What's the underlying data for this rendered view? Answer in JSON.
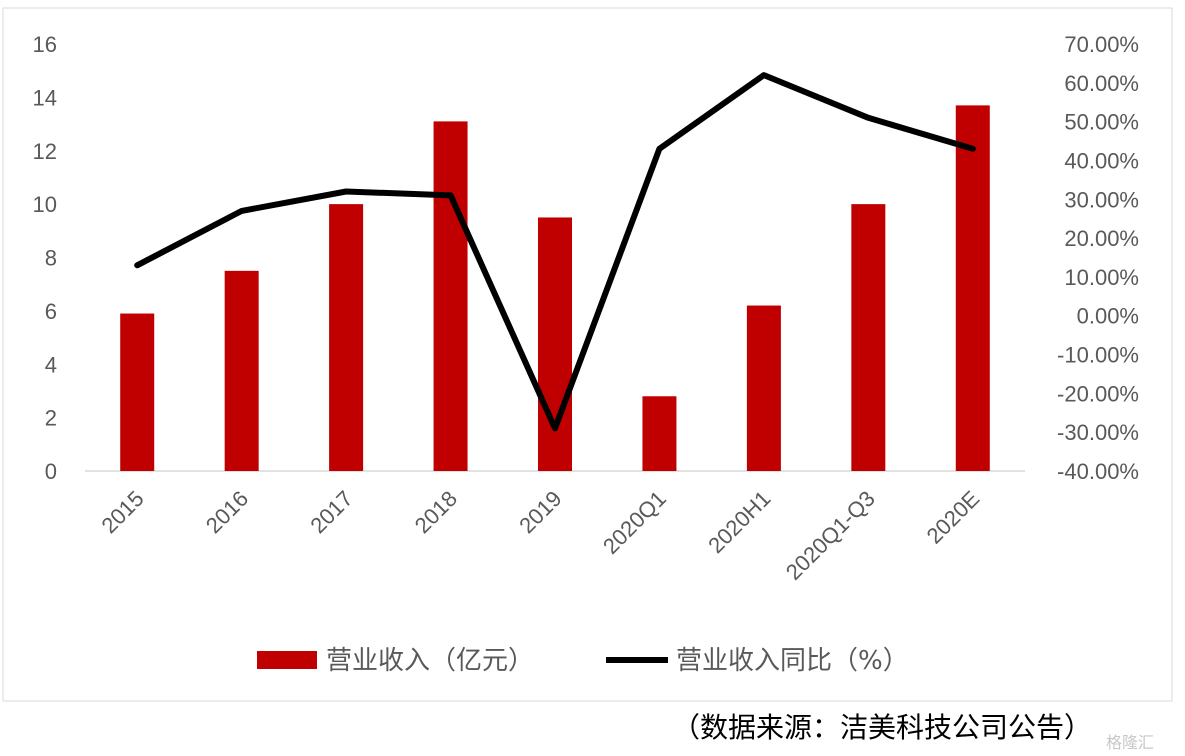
{
  "chart_data": {
    "type": "bar",
    "categories": [
      "2015",
      "2016",
      "2017",
      "2018",
      "2019",
      "2020Q1",
      "2020H1",
      "2020Q1-Q3",
      "2020E"
    ],
    "series": [
      {
        "name": "营业收入（亿元）",
        "type": "bar",
        "axis": "left",
        "color": "#c00000",
        "values": [
          5.9,
          7.5,
          10.0,
          13.1,
          9.5,
          2.8,
          6.2,
          10.0,
          13.7
        ]
      },
      {
        "name": "营业收入同比（%）",
        "type": "line",
        "axis": "right",
        "color": "#000000",
        "values": [
          13.0,
          27.0,
          32.0,
          31.0,
          -29.0,
          43.0,
          62.0,
          51.0,
          43.0
        ]
      }
    ],
    "left_axis": {
      "ylim": [
        0,
        16
      ],
      "ticks": [
        "0",
        "2",
        "4",
        "6",
        "8",
        "10",
        "12",
        "14",
        "16"
      ]
    },
    "right_axis": {
      "ylim": [
        -40,
        70
      ],
      "ticks": [
        "-40.00%",
        "-30.00%",
        "-20.00%",
        "-10.00%",
        "0.00%",
        "10.00%",
        "20.00%",
        "30.00%",
        "40.00%",
        "50.00%",
        "60.00%",
        "70.00%"
      ]
    },
    "grid": false,
    "legend": "bottom"
  },
  "source_note": "（数据来源：洁美科技公司公告）",
  "watermark": "格隆汇"
}
